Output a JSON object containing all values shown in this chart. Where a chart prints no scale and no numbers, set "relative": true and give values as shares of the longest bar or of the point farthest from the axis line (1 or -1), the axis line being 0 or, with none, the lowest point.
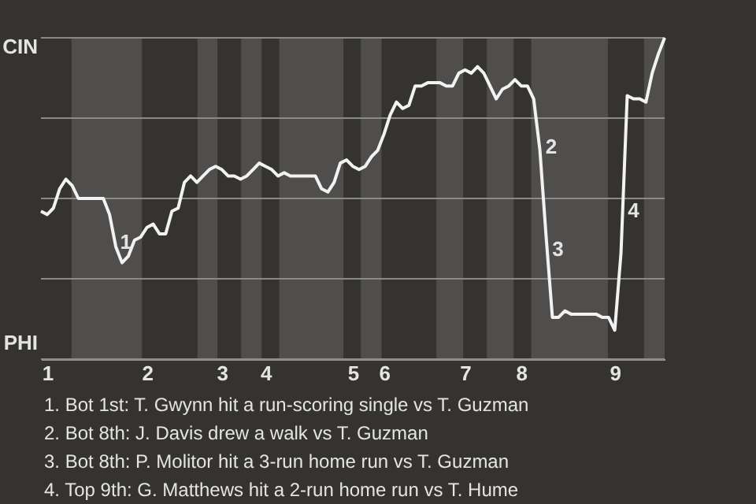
{
  "chart_data": {
    "type": "line",
    "relative": true,
    "categories": [
      null,
      "1",
      null,
      null,
      null,
      null,
      null,
      null,
      null,
      null,
      null,
      null,
      null,
      null,
      null,
      null,
      null,
      "2",
      null,
      null,
      null,
      null,
      null,
      null,
      null,
      null,
      null,
      null,
      null,
      "3",
      null,
      null,
      null,
      null,
      null,
      null,
      "4",
      null,
      null,
      null,
      null,
      null,
      null,
      null,
      null,
      null,
      null,
      null,
      null,
      null,
      "5",
      null,
      null,
      null,
      null,
      "6",
      null,
      null,
      null,
      null,
      null,
      null,
      null,
      null,
      null,
      null,
      null,
      null,
      "7",
      null,
      null,
      null,
      null,
      null,
      null,
      null,
      null,
      "8",
      null,
      null,
      null,
      null,
      null,
      null,
      null,
      null,
      null,
      null,
      null,
      null,
      null,
      null,
      "9",
      null,
      null,
      null,
      null,
      null,
      null,
      null,
      null
    ],
    "series": [
      {
        "color": "#f2f2f2",
        "values": [
          0.46,
          0.45,
          0.47,
          0.53,
          0.56,
          0.54,
          0.5,
          0.5,
          0.5,
          0.5,
          0.5,
          0.45,
          0.35,
          0.3,
          0.32,
          0.37,
          0.38,
          0.41,
          0.42,
          0.39,
          0.39,
          0.46,
          0.47,
          0.55,
          0.57,
          0.55,
          0.57,
          0.59,
          0.6,
          0.59,
          0.57,
          0.57,
          0.56,
          0.57,
          0.59,
          0.61,
          0.6,
          0.59,
          0.57,
          0.58,
          0.57,
          0.57,
          0.57,
          0.57,
          0.57,
          0.53,
          0.52,
          0.55,
          0.61,
          0.62,
          0.6,
          0.59,
          0.6,
          0.63,
          0.65,
          0.7,
          0.76,
          0.8,
          0.78,
          0.79,
          0.85,
          0.85,
          0.86,
          0.86,
          0.86,
          0.85,
          0.85,
          0.89,
          0.9,
          0.89,
          0.91,
          0.89,
          0.85,
          0.81,
          0.84,
          0.85,
          0.87,
          0.85,
          0.85,
          0.81,
          0.65,
          0.38,
          0.13,
          0.13,
          0.15,
          0.14,
          0.14,
          0.14,
          0.14,
          0.14,
          0.13,
          0.13,
          0.09,
          0.33,
          0.82,
          0.81,
          0.81,
          0.8,
          0.89,
          0.95,
          1.0
        ]
      }
    ],
    "grid": "y",
    "annotations": [
      "CIN",
      "PHI",
      "1",
      "2",
      "3",
      "4",
      "1. Bot 1st: T. Gwynn hit a run-scoring single vs T. Guzman",
      "2. Bot 8th: J. Davis drew a walk vs T. Guzman",
      "3. Bot 8th: P. Molitor hit a 3-run home run vs T. Guzman",
      "4. Top 9th: G. Matthews hit a 2-run home run vs T. Hume"
    ]
  }
}
